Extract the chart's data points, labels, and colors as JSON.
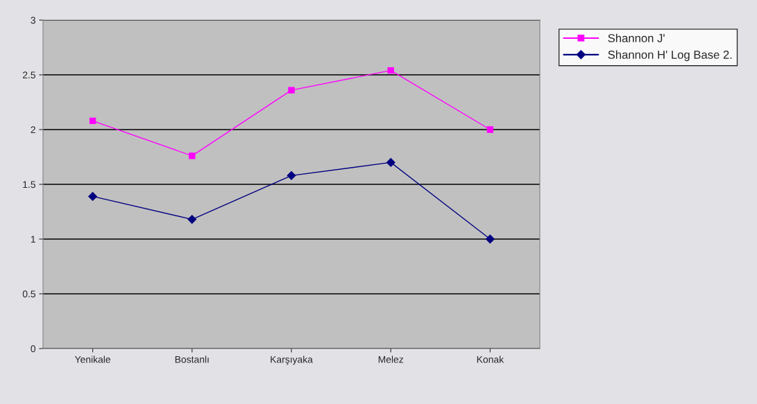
{
  "chart_data": {
    "type": "line",
    "categories": [
      "Yenikale",
      "Bostanlı",
      "Karşıyaka",
      "Melez",
      "Konak"
    ],
    "series": [
      {
        "name": "Shannon J'",
        "color": "#ff00ff",
        "marker": "square",
        "values": [
          2.08,
          1.76,
          2.36,
          2.54,
          2.0
        ]
      },
      {
        "name": "Shannon H' Log Base 2.",
        "color": "#000080",
        "marker": "diamond",
        "values": [
          1.39,
          1.18,
          1.58,
          1.7,
          1.0
        ]
      }
    ],
    "ylim": [
      0,
      3
    ],
    "yticks": [
      0,
      0.5,
      1,
      1.5,
      2,
      2.5,
      3
    ],
    "grid": "y",
    "legend": "top right",
    "line_style": "solid"
  }
}
